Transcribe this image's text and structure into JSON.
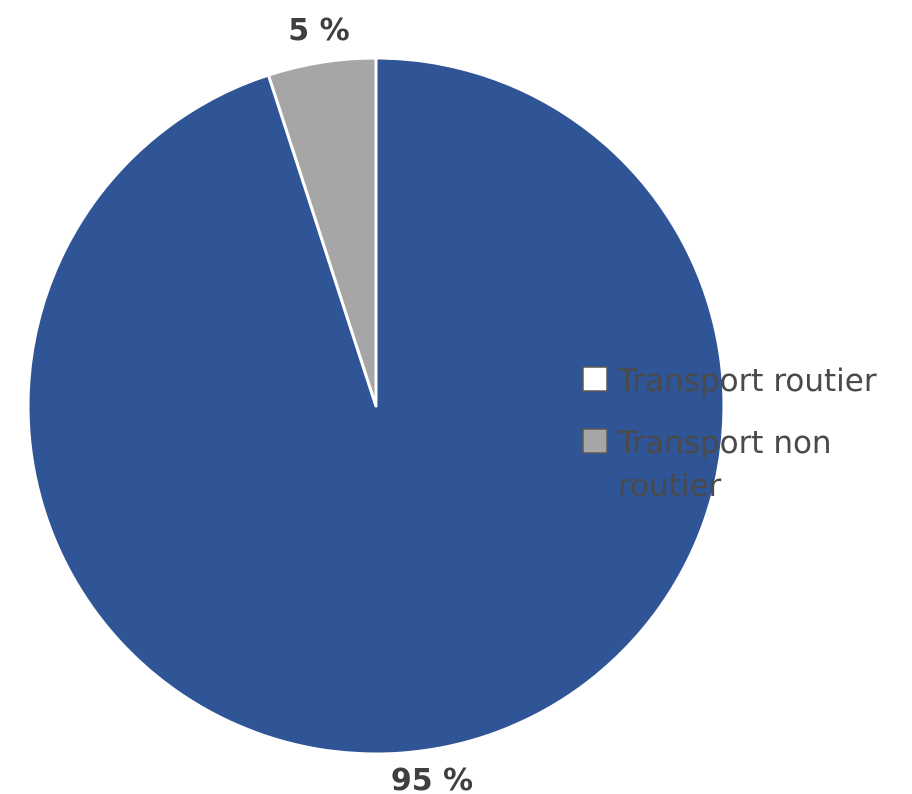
{
  "chart_data": {
    "type": "pie",
    "categories": [
      "Transport routier",
      "Transport non routier"
    ],
    "values": [
      95,
      5
    ],
    "data_labels": [
      "95 %",
      "5 %"
    ],
    "colors": [
      "#2f5597",
      "#a6a6a6"
    ],
    "legend": {
      "placement": "right",
      "items": [
        {
          "label_lines": [
            "Transport routier"
          ],
          "swatch": "#ffffff"
        },
        {
          "label_lines": [
            "Transport non",
            "routier"
          ],
          "swatch": "#a6a6a6"
        }
      ]
    }
  }
}
